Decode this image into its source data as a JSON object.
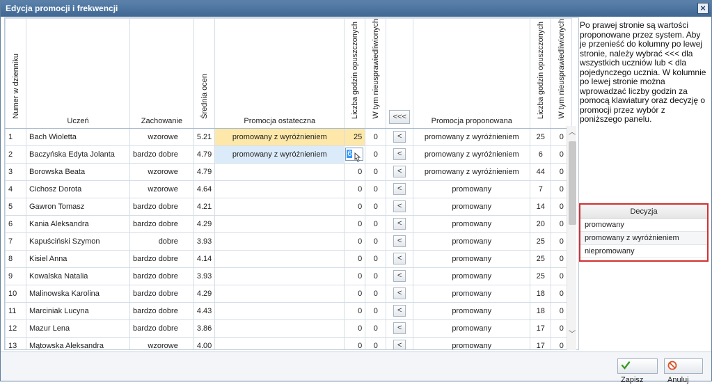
{
  "window": {
    "title": "Edycja promocji i frekwencji"
  },
  "headers": {
    "numer": "Numer w dzienniku",
    "uczen": "Uczeń",
    "zachowanie": "Zachowanie",
    "srednia": "Średnia ocen",
    "promocja_ostateczna": "Promocja ostateczna",
    "liczba_godzin": "Liczba godzin opuszczonych",
    "w_tym": "W tym nieusprawiedliwionych",
    "bulk_button": "<<<",
    "promocja_proponowana": "Promocja proponowana",
    "liczba_godzin_prop": "Liczba godzin opuszczonych",
    "w_tym_prop": "W tym nieusprawiedliwionych"
  },
  "row_button_label": "<",
  "rows": [
    {
      "nr": "1",
      "name": "Bach Wioletta",
      "behavior": "wzorowe",
      "avg": "5.21",
      "final": "promowany z wyróżnieniem",
      "hours": "25",
      "unexcused": "0",
      "proposed": "promowany z wyróżnieniem",
      "p_hours": "25",
      "p_unexcused": "0"
    },
    {
      "nr": "2",
      "name": "Baczyńska Edyta Jolanta",
      "behavior": "bardzo dobre",
      "avg": "4.79",
      "final": "promowany z wyróżnieniem",
      "hours": "6",
      "unexcused": "0",
      "proposed": "promowany z wyróżnieniem",
      "p_hours": "6",
      "p_unexcused": "0"
    },
    {
      "nr": "3",
      "name": "Borowska Beata",
      "behavior": "wzorowe",
      "avg": "4.79",
      "final": "",
      "hours": "0",
      "unexcused": "0",
      "proposed": "promowany z wyróżnieniem",
      "p_hours": "44",
      "p_unexcused": "0"
    },
    {
      "nr": "4",
      "name": "Cichosz Dorota",
      "behavior": "wzorowe",
      "avg": "4.64",
      "final": "",
      "hours": "0",
      "unexcused": "0",
      "proposed": "promowany",
      "p_hours": "7",
      "p_unexcused": "0"
    },
    {
      "nr": "5",
      "name": "Gawron Tomasz",
      "behavior": "bardzo dobre",
      "avg": "4.21",
      "final": "",
      "hours": "0",
      "unexcused": "0",
      "proposed": "promowany",
      "p_hours": "14",
      "p_unexcused": "0"
    },
    {
      "nr": "6",
      "name": "Kania Aleksandra",
      "behavior": "bardzo dobre",
      "avg": "4.29",
      "final": "",
      "hours": "0",
      "unexcused": "0",
      "proposed": "promowany",
      "p_hours": "20",
      "p_unexcused": "0"
    },
    {
      "nr": "7",
      "name": "Kapuściński Szymon",
      "behavior": "dobre",
      "avg": "3.93",
      "final": "",
      "hours": "0",
      "unexcused": "0",
      "proposed": "promowany",
      "p_hours": "25",
      "p_unexcused": "0"
    },
    {
      "nr": "8",
      "name": "Kisiel Anna",
      "behavior": "bardzo dobre",
      "avg": "4.14",
      "final": "",
      "hours": "0",
      "unexcused": "0",
      "proposed": "promowany",
      "p_hours": "25",
      "p_unexcused": "0"
    },
    {
      "nr": "9",
      "name": "Kowalska Natalia",
      "behavior": "bardzo dobre",
      "avg": "3.93",
      "final": "",
      "hours": "0",
      "unexcused": "0",
      "proposed": "promowany",
      "p_hours": "25",
      "p_unexcused": "0"
    },
    {
      "nr": "10",
      "name": "Malinowska Karolina",
      "behavior": "bardzo dobre",
      "avg": "4.29",
      "final": "",
      "hours": "0",
      "unexcused": "0",
      "proposed": "promowany",
      "p_hours": "18",
      "p_unexcused": "0"
    },
    {
      "nr": "11",
      "name": "Marciniak Lucyna",
      "behavior": "bardzo dobre",
      "avg": "4.43",
      "final": "",
      "hours": "0",
      "unexcused": "0",
      "proposed": "promowany",
      "p_hours": "18",
      "p_unexcused": "0"
    },
    {
      "nr": "12",
      "name": "Mazur Lena",
      "behavior": "bardzo dobre",
      "avg": "3.86",
      "final": "",
      "hours": "0",
      "unexcused": "0",
      "proposed": "promowany",
      "p_hours": "17",
      "p_unexcused": "0"
    },
    {
      "nr": "13",
      "name": "Mątowska Aleksandra",
      "behavior": "wzorowe",
      "avg": "4.00",
      "final": "",
      "hours": "0",
      "unexcused": "0",
      "proposed": "promowany",
      "p_hours": "17",
      "p_unexcused": "0"
    }
  ],
  "info_text": "Po prawej stronie są wartości proponowane przez system. Aby je przenieść do kolumny po lewej stronie, należy wybrać <<< dla wszystkich uczniów lub < dla pojedynczego ucznia. W kolumnie po lewej stronie można wprowadzać liczby godzin za pomocą klawiatury oraz decyzję o promocji przez wybór z poniższego panelu.",
  "decision": {
    "title": "Decyzja",
    "options": [
      "promowany",
      "promowany z wyróżnieniem",
      "niepromowany"
    ]
  },
  "footer": {
    "save_label": "Zapisz",
    "cancel_label": "Anuluj"
  },
  "colors": {
    "title_bar": "#4a73a0",
    "final_highlight": "#fde8a9",
    "edit_highlight": "#dcebfa",
    "decision_border": "#d32f2f"
  }
}
